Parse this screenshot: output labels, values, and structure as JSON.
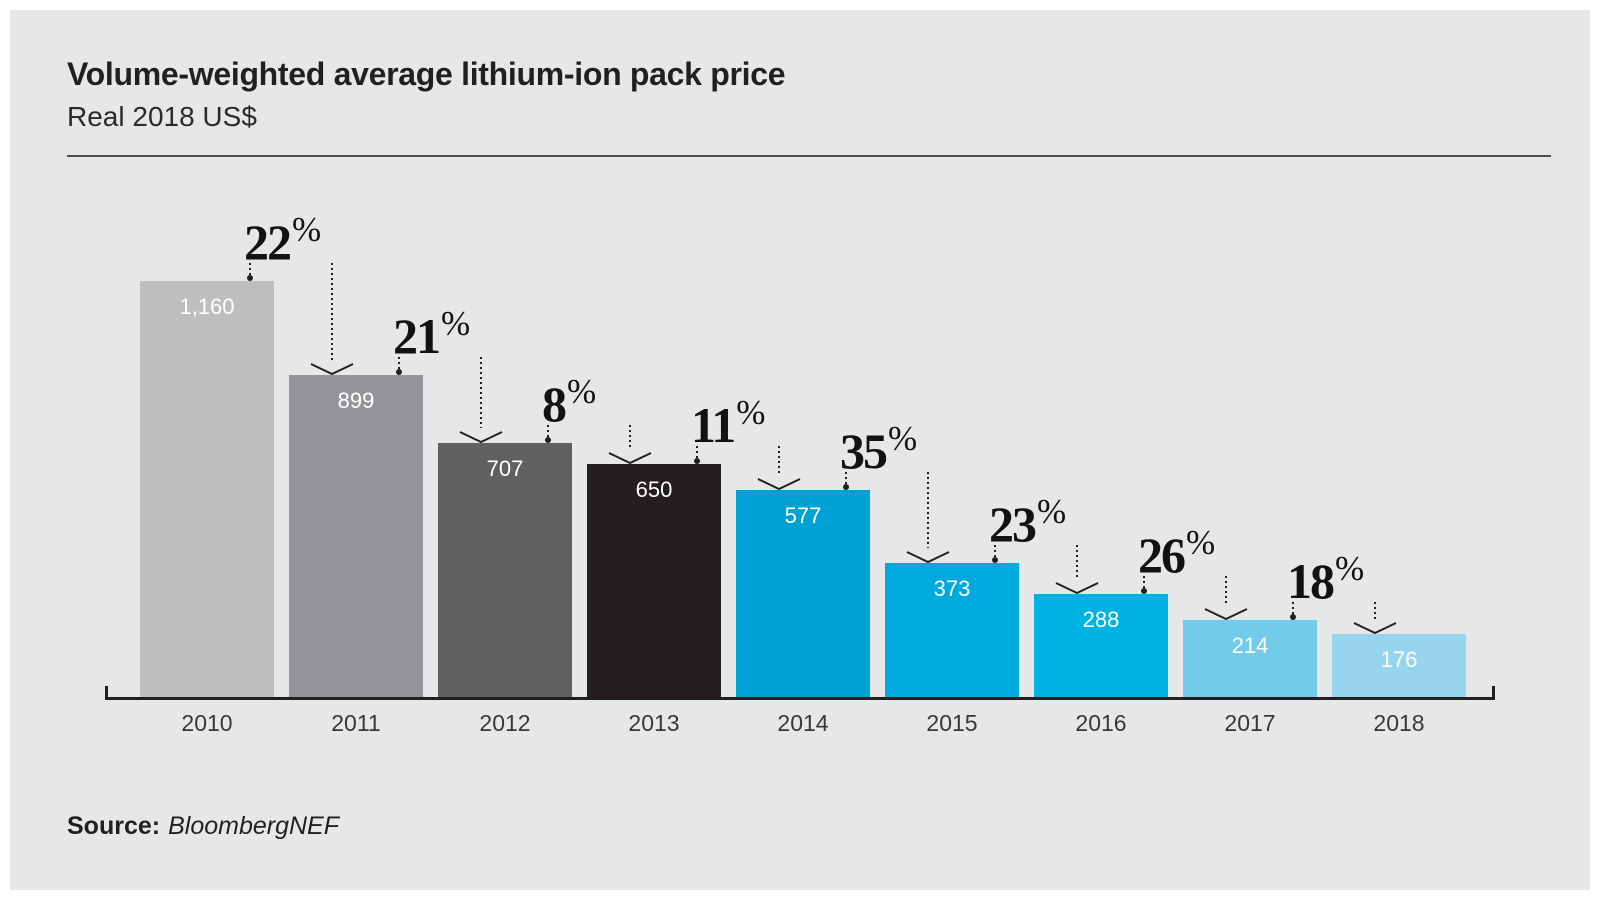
{
  "header": {
    "title": "Volume-weighted average lithium-ion pack price",
    "subtitle": "Real 2018 US$"
  },
  "footer": {
    "source_label": "Source:",
    "source_value": "BloombergNEF"
  },
  "colors": {
    "page_bg": "#ffffff",
    "panel_bg": "#e6e7e8",
    "text": "#231f20",
    "axis": "#231f20",
    "divider": "#4c4d4f",
    "value_label_text": "#ffffff",
    "year_label_text": "#38383a",
    "pct_text": "#141112"
  },
  "chart_data": {
    "type": "bar",
    "title": "Volume-weighted average lithium-ion pack price",
    "subtitle_units": "Real 2018 US$",
    "source": "BloombergNEF",
    "categories": [
      "2010",
      "2011",
      "2012",
      "2013",
      "2014",
      "2015",
      "2016",
      "2017",
      "2018"
    ],
    "values": [
      1160,
      899,
      707,
      650,
      577,
      373,
      288,
      214,
      176
    ],
    "value_labels": [
      "1,160",
      "899",
      "707",
      "650",
      "577",
      "373",
      "288",
      "214",
      "176"
    ],
    "bar_colors": [
      "#bcbec0",
      "#939598",
      "#5e6062",
      "#231f20",
      "#00a1d5",
      "#00aadc",
      "#00b3e3",
      "#72cbe9",
      "#97d5ef"
    ],
    "pct_change_values": [
      22,
      21,
      8,
      11,
      35,
      23,
      26,
      18
    ],
    "pct_change_labels": [
      "22%",
      "21%",
      "8%",
      "11%",
      "35%",
      "23%",
      "26%",
      "18%"
    ],
    "percent_symbol": "%",
    "ylim": [
      0,
      1160
    ],
    "xlabel": "",
    "ylabel": "",
    "grid": false,
    "legend": false
  }
}
